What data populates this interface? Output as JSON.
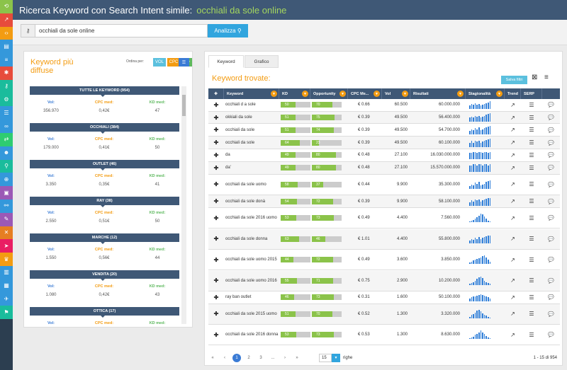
{
  "header": {
    "title": "Ricerca Keyword con Search Intent simile:",
    "keyword": "occhiali da sole online"
  },
  "search": {
    "value": "occhiali da sole online",
    "button": "Analizza"
  },
  "left": {
    "title": "Keyword più diffuse",
    "order_label": "Ordina per:",
    "order_buttons": [
      "VOL",
      "CPC",
      "KD"
    ],
    "clusters": [
      {
        "name": "TUTTE LE KEYWORD (954)",
        "vol": "356.970",
        "cpc": "0,42€",
        "kd": "47"
      },
      {
        "name": "OCCHIALI (384)",
        "vol": "179.000",
        "cpc": "0,41€",
        "kd": "50"
      },
      {
        "name": "OUTLET (46)",
        "vol": "3.350",
        "cpc": "0,35€",
        "kd": "41"
      },
      {
        "name": "RAY (38)",
        "vol": "2.550",
        "cpc": "0,51€",
        "kd": "50"
      },
      {
        "name": "MARCHE (12)",
        "vol": "1.550",
        "cpc": "0,56€",
        "kd": "44"
      },
      {
        "name": "VENDITA (20)",
        "vol": "1.080",
        "cpc": "0,42€",
        "kd": "43"
      },
      {
        "name": "OTTICA (17)",
        "vol": "",
        "cpc": "",
        "kd": ""
      }
    ],
    "labels": {
      "vol": "Vol:",
      "cpc": "CPC med:",
      "kd": "KD med:"
    }
  },
  "tabs": [
    "Keyword",
    "Grafico"
  ],
  "right": {
    "title": "Keyword trovate:",
    "save": "Salva filtri",
    "columns": [
      "Keyword",
      "KD",
      "Opportunity",
      "CPC Me...",
      "Vol",
      "Risultati",
      "Stagionalità",
      "Trend",
      "SERP"
    ],
    "rows": [
      {
        "kw": "occhiali d a sole",
        "kd": 50,
        "opp": 70,
        "cpc": "€ 0.66",
        "vol": "60.500",
        "res": "60.000.000",
        "s": [
          4,
          6,
          5,
          7,
          5,
          6,
          4,
          5,
          6,
          7,
          8,
          9
        ]
      },
      {
        "kw": "okkiali da sole",
        "kd": 51,
        "opp": 75,
        "cpc": "€ 0.39",
        "vol": "49.500",
        "res": "56.400.000",
        "s": [
          5,
          6,
          5,
          7,
          6,
          7,
          5,
          6,
          7,
          8,
          9,
          10
        ]
      },
      {
        "kw": "occhiali da sole",
        "kd": 51,
        "opp": 74,
        "cpc": "€ 0.39",
        "vol": "49.500",
        "res": "54.700.000",
        "s": [
          4,
          6,
          5,
          7,
          6,
          8,
          5,
          6,
          7,
          8,
          9,
          10
        ]
      },
      {
        "kw": "occhiali da sole",
        "kd": 64,
        "opp": 23,
        "cpc": "€ 0.39",
        "vol": "49.500",
        "res": "60.100.000",
        "s": [
          5,
          7,
          5,
          7,
          6,
          7,
          5,
          6,
          7,
          8,
          9,
          10
        ]
      },
      {
        "kw": "da",
        "kd": 49,
        "opp": 80,
        "cpc": "€ 0.48",
        "vol": "27.100",
        "res": "16.030.000.000",
        "s": [
          8,
          8,
          9,
          9,
          8,
          9,
          9,
          8,
          9,
          9,
          8,
          9
        ]
      },
      {
        "kw": "da'",
        "kd": 49,
        "opp": 80,
        "cpc": "€ 0.48",
        "vol": "27.100",
        "res": "15.570.000.000",
        "s": [
          8,
          8,
          9,
          9,
          8,
          9,
          9,
          8,
          9,
          9,
          8,
          9
        ]
      },
      {
        "kw": "occhiali da sole uomo",
        "kd": 58,
        "opp": 37,
        "cpc": "€ 0.44",
        "vol": "9.900",
        "res": "35.300.000",
        "s": [
          3,
          5,
          4,
          7,
          6,
          8,
          4,
          5,
          6,
          8,
          9,
          10
        ],
        "h": 2
      },
      {
        "kw": "occhiali da sole donà",
        "kd": 54,
        "opp": 72,
        "cpc": "€ 0.39",
        "vol": "9.900",
        "res": "58.100.000",
        "s": [
          4,
          6,
          5,
          7,
          6,
          7,
          5,
          6,
          7,
          8,
          9,
          9
        ]
      },
      {
        "kw": "occhiali da sole 2016 uomo",
        "kd": 53,
        "opp": 73,
        "cpc": "€ 0.49",
        "vol": "4.400",
        "res": "7.560.000",
        "s": [
          1,
          2,
          3,
          4,
          6,
          8,
          10,
          9,
          7,
          4,
          2,
          1
        ],
        "h": 2
      },
      {
        "kw": "occhiali da sole donna",
        "kd": 63,
        "opp": 46,
        "cpc": "€ 1.01",
        "vol": "4.400",
        "res": "55.800.000",
        "s": [
          3,
          5,
          4,
          6,
          5,
          7,
          5,
          6,
          7,
          8,
          9,
          9
        ],
        "h": 2
      },
      {
        "kw": "occhiali da sole uomo 2015",
        "kd": 44,
        "opp": 72,
        "cpc": "€ 0.49",
        "vol": "3.600",
        "res": "3.850.000",
        "s": [
          2,
          3,
          4,
          5,
          6,
          7,
          8,
          9,
          10,
          8,
          5,
          3
        ],
        "h": 2
      },
      {
        "kw": "occhiali da sole uomo 2016",
        "kd": 55,
        "opp": 71,
        "cpc": "€ 0.75",
        "vol": "2.900",
        "res": "10.200.000",
        "s": [
          1,
          2,
          3,
          5,
          7,
          9,
          10,
          8,
          5,
          3,
          2,
          1
        ],
        "h": 2
      },
      {
        "kw": "ray ban outlet",
        "kd": 46,
        "opp": 73,
        "cpc": "€ 0.31",
        "vol": "1.600",
        "res": "50.100.000",
        "s": [
          4,
          5,
          6,
          6,
          7,
          8,
          9,
          8,
          7,
          6,
          5,
          4
        ]
      },
      {
        "kw": "occhiali da sole 2015 uomo",
        "kd": 51,
        "opp": 70,
        "cpc": "€ 0.52",
        "vol": "1.300",
        "res": "3.320.000",
        "s": [
          2,
          4,
          5,
          7,
          9,
          10,
          8,
          6,
          4,
          3,
          2,
          1
        ],
        "h": 2
      },
      {
        "kw": "occhiali da sole 2016 donna",
        "kd": 53,
        "opp": 73,
        "cpc": "€ 0.53",
        "vol": "1.300",
        "res": "8.630.000",
        "s": [
          1,
          2,
          3,
          5,
          6,
          8,
          10,
          8,
          6,
          4,
          2,
          1
        ],
        "h": 2
      }
    ]
  },
  "pager": {
    "pages": [
      "1",
      "2",
      "3",
      "..."
    ],
    "per_page": "15",
    "per_label": "righe",
    "info": "1 - 15 di 954"
  }
}
